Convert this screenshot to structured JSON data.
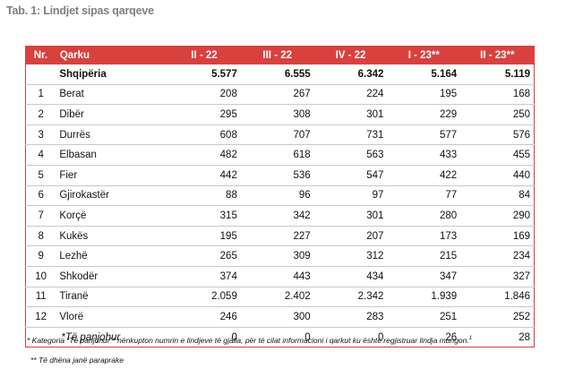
{
  "title": "Tab. 1: Lindjet sipas qarqeve",
  "table": {
    "headers": [
      "Nr.",
      "Qarku",
      "II - 22",
      "III - 22",
      "IV - 22",
      "I - 23**",
      "II - 23**"
    ],
    "total": {
      "nr": "",
      "name": "Shqipëria",
      "values": [
        "5.577",
        "6.555",
        "6.342",
        "5.164",
        "5.119"
      ]
    },
    "rows": [
      {
        "nr": "1",
        "name": "Berat",
        "values": [
          "208",
          "267",
          "224",
          "195",
          "168"
        ]
      },
      {
        "nr": "2",
        "name": "Dibër",
        "values": [
          "295",
          "308",
          "301",
          "229",
          "250"
        ]
      },
      {
        "nr": "3",
        "name": "Durrës",
        "values": [
          "608",
          "707",
          "731",
          "577",
          "576"
        ]
      },
      {
        "nr": "4",
        "name": "Elbasan",
        "values": [
          "482",
          "618",
          "563",
          "433",
          "455"
        ]
      },
      {
        "nr": "5",
        "name": "Fier",
        "values": [
          "442",
          "536",
          "547",
          "422",
          "440"
        ]
      },
      {
        "nr": "6",
        "name": "Gjirokastër",
        "values": [
          "88",
          "96",
          "97",
          "77",
          "84"
        ]
      },
      {
        "nr": "7",
        "name": "Korçë",
        "values": [
          "315",
          "342",
          "301",
          "280",
          "290"
        ]
      },
      {
        "nr": "8",
        "name": "Kukës",
        "values": [
          "195",
          "227",
          "207",
          "173",
          "169"
        ]
      },
      {
        "nr": "9",
        "name": "Lezhë",
        "values": [
          "265",
          "309",
          "312",
          "215",
          "234"
        ]
      },
      {
        "nr": "10",
        "name": "Shkodër",
        "values": [
          "374",
          "443",
          "434",
          "347",
          "327"
        ]
      },
      {
        "nr": "11",
        "name": "Tiranë",
        "values": [
          "2.059",
          "2.402",
          "2.342",
          "1.939",
          "1.846"
        ]
      },
      {
        "nr": "12",
        "name": "Vlorë",
        "values": [
          "246",
          "300",
          "283",
          "251",
          "252"
        ]
      },
      {
        "nr": "",
        "name": "*Të panjohur",
        "values": [
          "0",
          "0",
          "0",
          "26",
          "28"
        ]
      }
    ]
  },
  "footnotes": {
    "note1": "* Kategoria “Të panjohur”* nënkupton numrin e lindjeve të gjalla, për të cilat informacioni i qarkut  ku është regjistruar lindja mungon.",
    "note1_sup": "1",
    "note2": "** Të dhëna janë paraprake"
  }
}
